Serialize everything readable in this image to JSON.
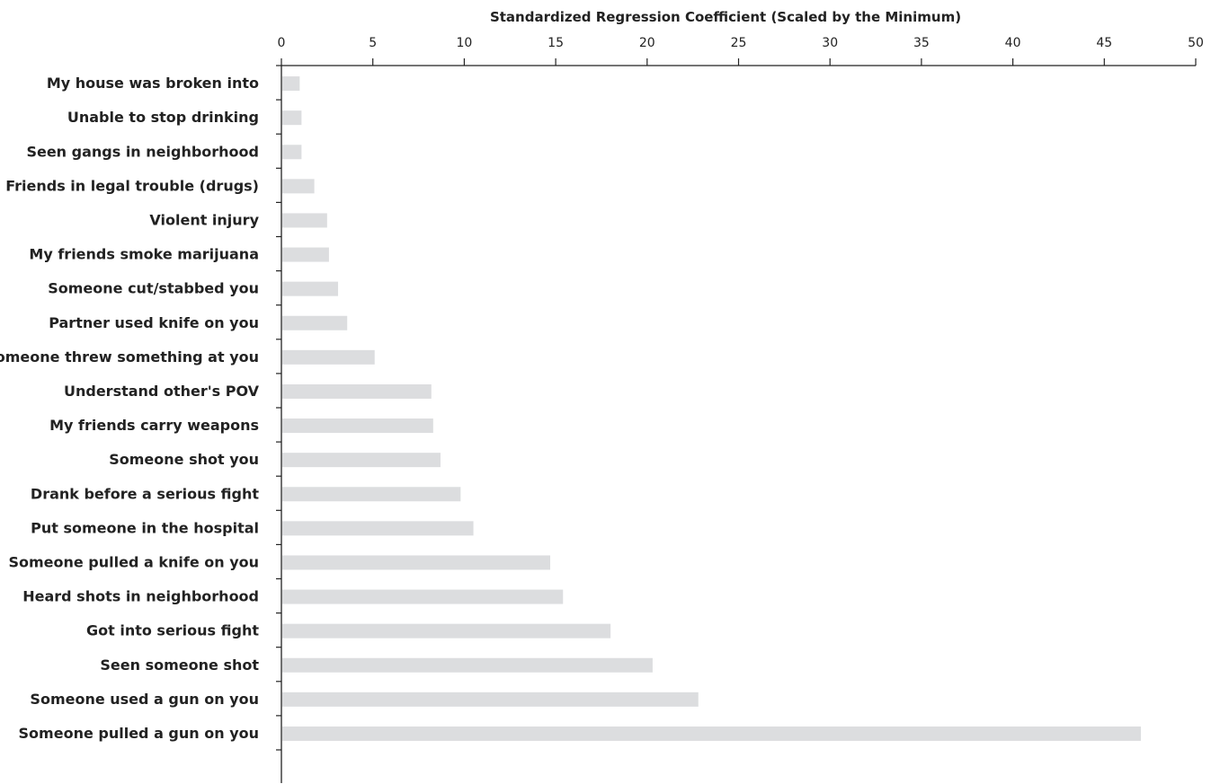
{
  "chart_data": {
    "type": "bar",
    "orientation": "horizontal",
    "title": "",
    "xlabel": "Standardized Regression Coefficient (Scaled by the Minimum)",
    "ylabel": "",
    "xlim": [
      0,
      50
    ],
    "xticks": [
      0,
      5,
      10,
      15,
      20,
      25,
      30,
      35,
      40,
      45,
      50
    ],
    "x_axis_position": "top",
    "grid": false,
    "bar_color": "#dcdddf",
    "categories": [
      "My house was broken into",
      "Unable to stop drinking",
      "Seen gangs in neighborhood",
      "Friends in legal trouble (drugs)",
      "Violent injury",
      "My friends smoke marijuana",
      "Someone cut/stabbed you",
      "Partner used knife on you",
      "Someone threw something at you",
      "Understand other's POV",
      "My friends carry weapons",
      "Someone shot you",
      "Drank before a serious fight",
      "Put someone in the hospital",
      "Someone pulled a knife on you",
      "Heard shots in neighborhood",
      "Got into serious fight",
      "Seen someone shot",
      "Someone used a gun on you",
      "Someone pulled a gun on you"
    ],
    "values": [
      1.0,
      1.1,
      1.1,
      1.8,
      2.5,
      2.6,
      3.1,
      3.6,
      5.1,
      8.2,
      8.3,
      8.7,
      9.8,
      10.5,
      14.7,
      15.4,
      18.0,
      20.3,
      22.8,
      47.0
    ]
  }
}
